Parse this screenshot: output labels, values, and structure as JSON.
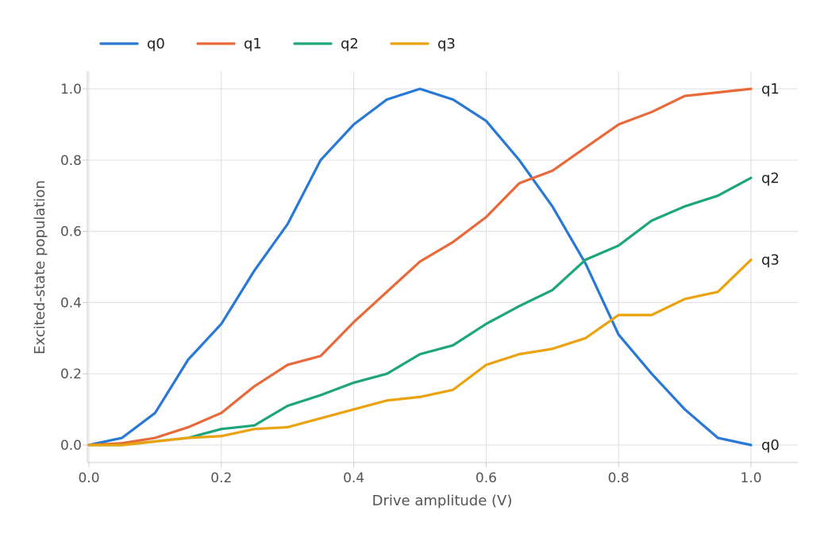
{
  "chart_data": {
    "type": "line",
    "xlabel": "Drive amplitude (V)",
    "ylabel": "Excited-state population",
    "xlim": [
      0,
      1
    ],
    "ylim": [
      -0.05,
      1.05
    ],
    "x_ticks": [
      "0.0",
      "0.2",
      "0.4",
      "0.6",
      "0.8",
      "1.0"
    ],
    "y_ticks": [
      "0.0",
      "0.2",
      "0.4",
      "0.6",
      "0.8",
      "1.0"
    ],
    "grid": true,
    "legend_position": "top-left",
    "x": [
      0.0,
      0.05,
      0.1,
      0.15,
      0.2,
      0.25,
      0.3,
      0.35,
      0.4,
      0.45,
      0.5,
      0.55,
      0.6,
      0.65,
      0.7,
      0.75,
      0.8,
      0.85,
      0.9,
      0.95,
      1.0
    ],
    "series": [
      {
        "name": "q0",
        "color": "#2878d6",
        "end_label": "q0",
        "values": [
          0.0,
          0.02,
          0.09,
          0.24,
          0.34,
          0.49,
          0.62,
          0.8,
          0.9,
          0.97,
          1.0,
          0.97,
          0.91,
          0.8,
          0.67,
          0.51,
          0.31,
          0.2,
          0.1,
          0.02,
          0.0
        ]
      },
      {
        "name": "q1",
        "color": "#e8693a",
        "end_label": "q1",
        "values": [
          0.0,
          0.005,
          0.02,
          0.05,
          0.09,
          0.165,
          0.225,
          0.25,
          0.345,
          0.43,
          0.515,
          0.57,
          0.64,
          0.735,
          0.77,
          0.835,
          0.9,
          0.935,
          0.98,
          0.99,
          1.0
        ]
      },
      {
        "name": "q2",
        "color": "#1ea67b",
        "end_label": "q2",
        "values": [
          0.0,
          0.0,
          0.01,
          0.02,
          0.045,
          0.055,
          0.11,
          0.14,
          0.175,
          0.2,
          0.255,
          0.28,
          0.34,
          0.39,
          0.435,
          0.52,
          0.56,
          0.63,
          0.67,
          0.7,
          0.75
        ]
      },
      {
        "name": "q3",
        "color": "#eba20d",
        "end_label": "q3",
        "values": [
          0.0,
          0.0,
          0.01,
          0.02,
          0.025,
          0.045,
          0.05,
          0.075,
          0.1,
          0.125,
          0.135,
          0.155,
          0.225,
          0.255,
          0.27,
          0.3,
          0.365,
          0.365,
          0.41,
          0.43,
          0.52
        ]
      }
    ]
  }
}
